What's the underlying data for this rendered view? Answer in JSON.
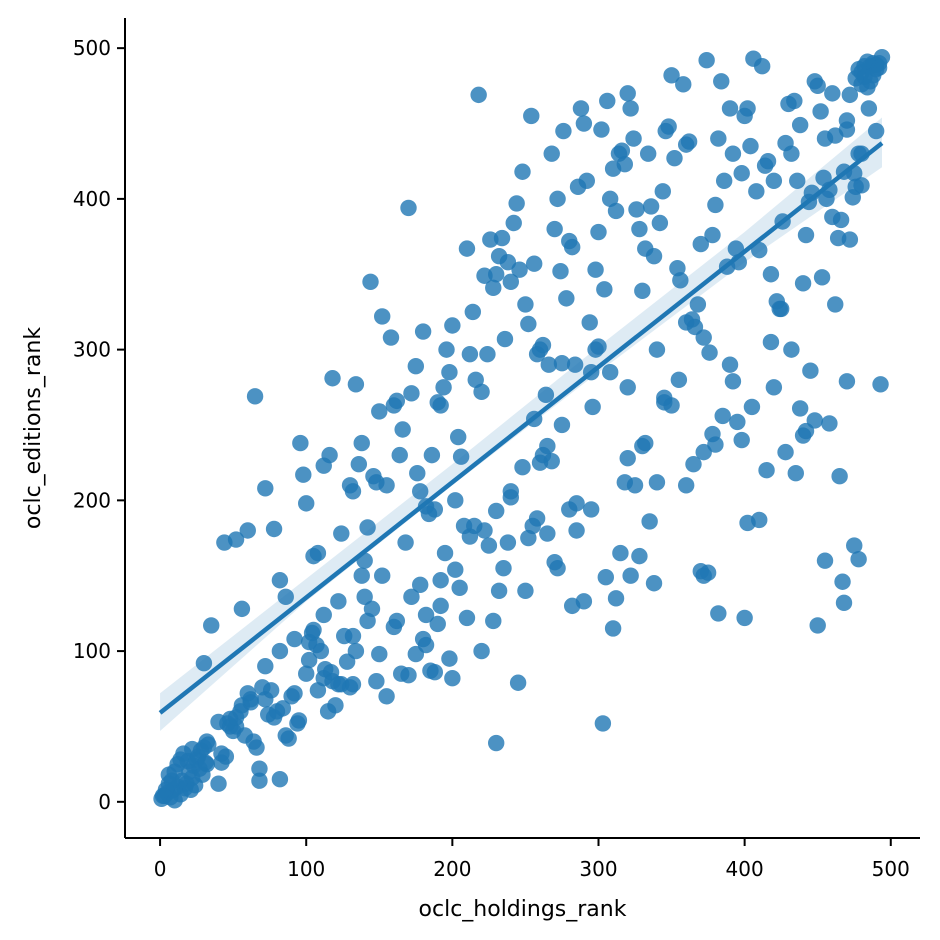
{
  "chart_data": {
    "type": "scatter",
    "title": "",
    "xlabel": "oclc_holdings_rank",
    "ylabel": "oclc_editions_rank",
    "xlim": [
      -24,
      520
    ],
    "ylim": [
      -24,
      520
    ],
    "xticks": [
      0,
      100,
      200,
      300,
      400,
      500
    ],
    "yticks": [
      0,
      100,
      200,
      300,
      400,
      500
    ],
    "grid": false,
    "legend": "none",
    "colors": {
      "points": "#1f77b4",
      "regression_line": "#1f77b4",
      "confidence_band": "#1f77b4",
      "axes": "#000000"
    },
    "regression": {
      "x": [
        0,
        494
      ],
      "y": [
        59,
        437
      ]
    },
    "confidence_band": {
      "x": [
        0,
        100,
        200,
        300,
        400,
        494
      ],
      "lower": [
        47,
        133,
        210,
        285,
        358,
        421
      ],
      "upper": [
        72,
        148,
        224,
        302,
        378,
        454
      ]
    },
    "points": [
      [
        1,
        2
      ],
      [
        3,
        4
      ],
      [
        5,
        6
      ],
      [
        7,
        3
      ],
      [
        9,
        8
      ],
      [
        10,
        1
      ],
      [
        12,
        10
      ],
      [
        14,
        5
      ],
      [
        15,
        14
      ],
      [
        17,
        9
      ],
      [
        18,
        12
      ],
      [
        20,
        20
      ],
      [
        21,
        8
      ],
      [
        22,
        16
      ],
      [
        23,
        24
      ],
      [
        24,
        11
      ],
      [
        25,
        28
      ],
      [
        26,
        30
      ],
      [
        27,
        22
      ],
      [
        28,
        34
      ],
      [
        29,
        18
      ],
      [
        30,
        36
      ],
      [
        31,
        26
      ],
      [
        32,
        25
      ],
      [
        33,
        38
      ],
      [
        12,
        25
      ],
      [
        16,
        32
      ],
      [
        8,
        14
      ],
      [
        6,
        18
      ],
      [
        19,
        27
      ],
      [
        40,
        12
      ],
      [
        42,
        26
      ],
      [
        45,
        30
      ],
      [
        46,
        52
      ],
      [
        48,
        55
      ],
      [
        50,
        47
      ],
      [
        52,
        50
      ],
      [
        55,
        60
      ],
      [
        56,
        64
      ],
      [
        58,
        44
      ],
      [
        60,
        72
      ],
      [
        62,
        66
      ],
      [
        64,
        40
      ],
      [
        66,
        36
      ],
      [
        68,
        14
      ],
      [
        68,
        22
      ],
      [
        70,
        76
      ],
      [
        72,
        68
      ],
      [
        74,
        58
      ],
      [
        76,
        74
      ],
      [
        78,
        56
      ],
      [
        80,
        60
      ],
      [
        82,
        15
      ],
      [
        84,
        62
      ],
      [
        86,
        44
      ],
      [
        88,
        42
      ],
      [
        90,
        70
      ],
      [
        92,
        72
      ],
      [
        94,
        52
      ],
      [
        95,
        54
      ],
      [
        100,
        85
      ],
      [
        102,
        94
      ],
      [
        104,
        112
      ],
      [
        105,
        114
      ],
      [
        107,
        104
      ],
      [
        108,
        74
      ],
      [
        110,
        100
      ],
      [
        112,
        82
      ],
      [
        113,
        88
      ],
      [
        115,
        60
      ],
      [
        117,
        86
      ],
      [
        118,
        80
      ],
      [
        120,
        64
      ],
      [
        122,
        78
      ],
      [
        124,
        78
      ],
      [
        126,
        110
      ],
      [
        128,
        93
      ],
      [
        130,
        76
      ],
      [
        132,
        78
      ],
      [
        134,
        100
      ],
      [
        138,
        150
      ],
      [
        140,
        136
      ],
      [
        145,
        128
      ],
      [
        148,
        80
      ],
      [
        150,
        98
      ],
      [
        155,
        70
      ],
      [
        160,
        116
      ],
      [
        165,
        85
      ],
      [
        170,
        84
      ],
      [
        175,
        98
      ],
      [
        178,
        144
      ],
      [
        180,
        108
      ],
      [
        182,
        104
      ],
      [
        185,
        87
      ],
      [
        188,
        86
      ],
      [
        190,
        118
      ],
      [
        192,
        130
      ],
      [
        195,
        165
      ],
      [
        198,
        95
      ],
      [
        200,
        82
      ],
      [
        205,
        142
      ],
      [
        210,
        122
      ],
      [
        215,
        183
      ],
      [
        220,
        100
      ],
      [
        225,
        170
      ],
      [
        228,
        120
      ],
      [
        230,
        39
      ],
      [
        232,
        140
      ],
      [
        235,
        155
      ],
      [
        238,
        172
      ],
      [
        240,
        202
      ],
      [
        245,
        79
      ],
      [
        250,
        140
      ],
      [
        252,
        175
      ],
      [
        255,
        183
      ],
      [
        258,
        188
      ],
      [
        260,
        225
      ],
      [
        262,
        230
      ],
      [
        265,
        178
      ],
      [
        268,
        226
      ],
      [
        270,
        159
      ],
      [
        272,
        155
      ],
      [
        275,
        250
      ],
      [
        280,
        194
      ],
      [
        282,
        130
      ],
      [
        285,
        180
      ],
      [
        290,
        133
      ],
      [
        295,
        194
      ],
      [
        298,
        300
      ],
      [
        300,
        302
      ],
      [
        303,
        52
      ],
      [
        305,
        149
      ],
      [
        310,
        115
      ],
      [
        312,
        135
      ],
      [
        315,
        165
      ],
      [
        318,
        212
      ],
      [
        320,
        228
      ],
      [
        322,
        150
      ],
      [
        325,
        210
      ],
      [
        328,
        163
      ],
      [
        330,
        236
      ],
      [
        335,
        186
      ],
      [
        338,
        145
      ],
      [
        340,
        212
      ],
      [
        345,
        268
      ],
      [
        350,
        263
      ],
      [
        355,
        280
      ],
      [
        360,
        318
      ],
      [
        365,
        224
      ],
      [
        370,
        153
      ],
      [
        372,
        232
      ],
      [
        375,
        152
      ],
      [
        378,
        244
      ],
      [
        380,
        237
      ],
      [
        382,
        125
      ],
      [
        385,
        256
      ],
      [
        390,
        290
      ],
      [
        392,
        279
      ],
      [
        395,
        252
      ],
      [
        398,
        240
      ],
      [
        400,
        122
      ],
      [
        402,
        185
      ],
      [
        405,
        262
      ],
      [
        410,
        187
      ],
      [
        415,
        220
      ],
      [
        418,
        305
      ],
      [
        420,
        275
      ],
      [
        425,
        327
      ],
      [
        428,
        232
      ],
      [
        432,
        300
      ],
      [
        435,
        218
      ],
      [
        438,
        261
      ],
      [
        440,
        243
      ],
      [
        442,
        246
      ],
      [
        445,
        286
      ],
      [
        448,
        253
      ],
      [
        450,
        117
      ],
      [
        453,
        348
      ],
      [
        455,
        160
      ],
      [
        458,
        251
      ],
      [
        462,
        330
      ],
      [
        465,
        216
      ],
      [
        467,
        146
      ],
      [
        468,
        132
      ],
      [
        470,
        279
      ],
      [
        472,
        373
      ],
      [
        475,
        170
      ],
      [
        478,
        161
      ],
      [
        480,
        409
      ],
      [
        493,
        277
      ],
      [
        30,
        92
      ],
      [
        35,
        117
      ],
      [
        40,
        53
      ],
      [
        44,
        172
      ],
      [
        48,
        50
      ],
      [
        52,
        174
      ],
      [
        56,
        128
      ],
      [
        60,
        180
      ],
      [
        65,
        269
      ],
      [
        72,
        208
      ],
      [
        78,
        181
      ],
      [
        82,
        147
      ],
      [
        86,
        136
      ],
      [
        96,
        238
      ],
      [
        98,
        217
      ],
      [
        100,
        198
      ],
      [
        105,
        163
      ],
      [
        108,
        165
      ],
      [
        112,
        223
      ],
      [
        116,
        230
      ],
      [
        118,
        281
      ],
      [
        124,
        178
      ],
      [
        130,
        210
      ],
      [
        132,
        206
      ],
      [
        134,
        277
      ],
      [
        136,
        224
      ],
      [
        138,
        238
      ],
      [
        140,
        160
      ],
      [
        142,
        182
      ],
      [
        144,
        345
      ],
      [
        146,
        216
      ],
      [
        148,
        212
      ],
      [
        150,
        259
      ],
      [
        152,
        322
      ],
      [
        155,
        210
      ],
      [
        158,
        308
      ],
      [
        160,
        263
      ],
      [
        162,
        266
      ],
      [
        164,
        230
      ],
      [
        166,
        247
      ],
      [
        168,
        172
      ],
      [
        170,
        394
      ],
      [
        172,
        271
      ],
      [
        175,
        289
      ],
      [
        176,
        218
      ],
      [
        178,
        206
      ],
      [
        180,
        312
      ],
      [
        182,
        196
      ],
      [
        184,
        191
      ],
      [
        186,
        230
      ],
      [
        188,
        194
      ],
      [
        190,
        265
      ],
      [
        192,
        263
      ],
      [
        194,
        275
      ],
      [
        196,
        300
      ],
      [
        198,
        285
      ],
      [
        200,
        316
      ],
      [
        202,
        200
      ],
      [
        204,
        242
      ],
      [
        206,
        229
      ],
      [
        208,
        183
      ],
      [
        210,
        367
      ],
      [
        212,
        297
      ],
      [
        214,
        325
      ],
      [
        216,
        280
      ],
      [
        218,
        469
      ],
      [
        220,
        272
      ],
      [
        222,
        349
      ],
      [
        224,
        297
      ],
      [
        226,
        373
      ],
      [
        228,
        341
      ],
      [
        230,
        350
      ],
      [
        232,
        362
      ],
      [
        234,
        374
      ],
      [
        236,
        307
      ],
      [
        238,
        358
      ],
      [
        240,
        345
      ],
      [
        242,
        384
      ],
      [
        244,
        397
      ],
      [
        246,
        353
      ],
      [
        248,
        418
      ],
      [
        250,
        330
      ],
      [
        252,
        317
      ],
      [
        254,
        455
      ],
      [
        256,
        357
      ],
      [
        258,
        297
      ],
      [
        260,
        300
      ],
      [
        262,
        303
      ],
      [
        264,
        270
      ],
      [
        266,
        290
      ],
      [
        268,
        430
      ],
      [
        270,
        380
      ],
      [
        272,
        400
      ],
      [
        274,
        352
      ],
      [
        276,
        445
      ],
      [
        278,
        334
      ],
      [
        280,
        372
      ],
      [
        282,
        368
      ],
      [
        284,
        290
      ],
      [
        286,
        408
      ],
      [
        288,
        460
      ],
      [
        290,
        450
      ],
      [
        292,
        412
      ],
      [
        294,
        318
      ],
      [
        296,
        262
      ],
      [
        298,
        353
      ],
      [
        300,
        378
      ],
      [
        302,
        446
      ],
      [
        304,
        340
      ],
      [
        306,
        465
      ],
      [
        308,
        400
      ],
      [
        310,
        420
      ],
      [
        312,
        392
      ],
      [
        314,
        430
      ],
      [
        316,
        432
      ],
      [
        318,
        423
      ],
      [
        320,
        470
      ],
      [
        322,
        460
      ],
      [
        324,
        440
      ],
      [
        326,
        393
      ],
      [
        328,
        380
      ],
      [
        330,
        339
      ],
      [
        332,
        367
      ],
      [
        334,
        430
      ],
      [
        336,
        395
      ],
      [
        338,
        362
      ],
      [
        340,
        300
      ],
      [
        342,
        384
      ],
      [
        344,
        405
      ],
      [
        346,
        445
      ],
      [
        348,
        448
      ],
      [
        350,
        482
      ],
      [
        352,
        427
      ],
      [
        354,
        354
      ],
      [
        356,
        346
      ],
      [
        358,
        476
      ],
      [
        360,
        436
      ],
      [
        362,
        438
      ],
      [
        364,
        320
      ],
      [
        366,
        315
      ],
      [
        368,
        330
      ],
      [
        370,
        370
      ],
      [
        372,
        308
      ],
      [
        374,
        492
      ],
      [
        376,
        298
      ],
      [
        378,
        376
      ],
      [
        380,
        396
      ],
      [
        382,
        440
      ],
      [
        384,
        478
      ],
      [
        386,
        412
      ],
      [
        388,
        355
      ],
      [
        390,
        460
      ],
      [
        392,
        430
      ],
      [
        394,
        367
      ],
      [
        396,
        358
      ],
      [
        398,
        417
      ],
      [
        400,
        455
      ],
      [
        402,
        460
      ],
      [
        404,
        435
      ],
      [
        406,
        493
      ],
      [
        408,
        405
      ],
      [
        410,
        366
      ],
      [
        412,
        488
      ],
      [
        414,
        422
      ],
      [
        416,
        425
      ],
      [
        418,
        350
      ],
      [
        420,
        412
      ],
      [
        422,
        332
      ],
      [
        424,
        327
      ],
      [
        426,
        385
      ],
      [
        428,
        437
      ],
      [
        430,
        463
      ],
      [
        432,
        430
      ],
      [
        434,
        465
      ],
      [
        436,
        412
      ],
      [
        438,
        449
      ],
      [
        440,
        344
      ],
      [
        442,
        376
      ],
      [
        444,
        398
      ],
      [
        446,
        404
      ],
      [
        448,
        478
      ],
      [
        450,
        475
      ],
      [
        452,
        458
      ],
      [
        454,
        414
      ],
      [
        456,
        400
      ],
      [
        458,
        406
      ],
      [
        460,
        388
      ],
      [
        462,
        442
      ],
      [
        464,
        374
      ],
      [
        466,
        386
      ],
      [
        468,
        418
      ],
      [
        470,
        446
      ],
      [
        472,
        469
      ],
      [
        474,
        401
      ],
      [
        476,
        408
      ],
      [
        478,
        430
      ],
      [
        480,
        484
      ],
      [
        482,
        488
      ],
      [
        484,
        474
      ],
      [
        486,
        478
      ],
      [
        488,
        490
      ],
      [
        490,
        486
      ],
      [
        492,
        490
      ],
      [
        494,
        494
      ],
      [
        486,
        488
      ],
      [
        482,
        481
      ],
      [
        478,
        486
      ],
      [
        490,
        489
      ],
      [
        484,
        491
      ],
      [
        480,
        476
      ],
      [
        488,
        482
      ],
      [
        492,
        487
      ],
      [
        476,
        480
      ],
      [
        470,
        452
      ],
      [
        475,
        417
      ],
      [
        480,
        430
      ],
      [
        485,
        460
      ],
      [
        490,
        445
      ],
      [
        460,
        470
      ],
      [
        455,
        440
      ],
      [
        372,
        150
      ],
      [
        360,
        210
      ],
      [
        345,
        265
      ],
      [
        332,
        238
      ],
      [
        320,
        275
      ],
      [
        308,
        285
      ],
      [
        295,
        285
      ],
      [
        285,
        198
      ],
      [
        275,
        291
      ],
      [
        265,
        236
      ],
      [
        256,
        254
      ],
      [
        248,
        222
      ],
      [
        240,
        206
      ],
      [
        230,
        193
      ],
      [
        222,
        180
      ],
      [
        212,
        176
      ],
      [
        202,
        154
      ],
      [
        192,
        147
      ],
      [
        182,
        124
      ],
      [
        172,
        136
      ],
      [
        162,
        120
      ],
      [
        152,
        150
      ],
      [
        142,
        120
      ],
      [
        132,
        110
      ],
      [
        122,
        133
      ],
      [
        112,
        124
      ],
      [
        102,
        106
      ],
      [
        92,
        108
      ],
      [
        82,
        100
      ],
      [
        72,
        90
      ],
      [
        62,
        68
      ],
      [
        52,
        56
      ],
      [
        42,
        32
      ],
      [
        32,
        40
      ],
      [
        22,
        35
      ],
      [
        14,
        28
      ],
      [
        10,
        20
      ],
      [
        6,
        12
      ],
      [
        4,
        8
      ],
      [
        2,
        4
      ]
    ]
  }
}
